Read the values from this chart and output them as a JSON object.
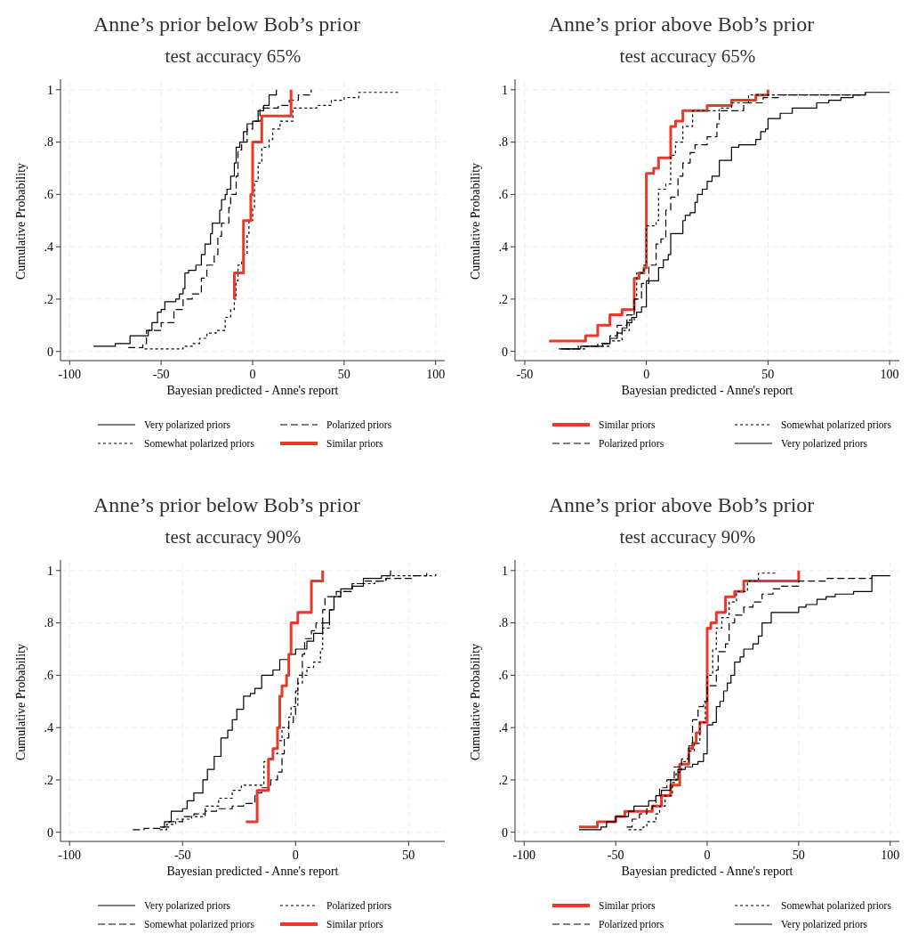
{
  "chart_data": [
    {
      "type": "step",
      "title": "Anne’s prior below Bob’s prior",
      "subtitle": "test accuracy 65%",
      "xlabel": "Bayesian predicted - Anne's report",
      "ylabel": "Cumulative Probability",
      "xlim": [
        -105,
        105
      ],
      "xticks": [
        -100,
        -50,
        0,
        50,
        100
      ],
      "ylim": [
        -0.035,
        1.03
      ],
      "yticks": [
        {
          "value": 0,
          "label": "0"
        },
        {
          "value": 0.2,
          "label": ".2"
        },
        {
          "value": 0.4,
          "label": ".4"
        },
        {
          "value": 0.6,
          "label": ".6"
        },
        {
          "value": 0.8,
          "label": ".8"
        },
        {
          "value": 1,
          "label": "1"
        }
      ],
      "grid": true,
      "legend": "bottom",
      "series": [
        {
          "name": "Very polarized priors",
          "color": "#000000",
          "line_style": "solid",
          "x": [
            -87,
            -75,
            -67,
            -57,
            -55,
            -52,
            -50,
            -48,
            -42,
            -40,
            -38,
            -37,
            -35,
            -31,
            -28,
            -26,
            -23,
            -22,
            -18,
            -17,
            -15,
            -14,
            -12,
            -10,
            -9,
            -7,
            -5,
            -3,
            0,
            3,
            6,
            9,
            13
          ],
          "values": [
            0.02,
            0.03,
            0.06,
            0.08,
            0.11,
            0.15,
            0.16,
            0.19,
            0.2,
            0.22,
            0.24,
            0.3,
            0.31,
            0.33,
            0.37,
            0.41,
            0.45,
            0.49,
            0.54,
            0.58,
            0.6,
            0.62,
            0.67,
            0.72,
            0.78,
            0.8,
            0.84,
            0.87,
            0.88,
            0.92,
            0.94,
            0.98,
            1.0
          ]
        },
        {
          "name": "Polarized priors",
          "color": "#000000",
          "line_style": "dashed",
          "x": [
            -68,
            -60,
            -58,
            -50,
            -43,
            -38,
            -33,
            -28,
            -25,
            -21,
            -19,
            -17,
            -13,
            -12,
            -9,
            -8,
            -6,
            -3,
            0,
            4,
            14,
            20,
            25,
            32
          ],
          "values": [
            0.015,
            0.03,
            0.08,
            0.11,
            0.16,
            0.2,
            0.22,
            0.28,
            0.33,
            0.37,
            0.44,
            0.49,
            0.55,
            0.6,
            0.67,
            0.77,
            0.8,
            0.85,
            0.88,
            0.93,
            0.94,
            0.96,
            0.98,
            1.0
          ]
        },
        {
          "name": "Somewhat polarized priors",
          "color": "#000000",
          "line_style": "dotted",
          "x": [
            -59,
            -40,
            -38,
            -33,
            -29,
            -25,
            -20,
            -15,
            -12,
            -10,
            -9,
            -8,
            -6,
            -5,
            -3,
            -2,
            0,
            1,
            3,
            5,
            9,
            11,
            15,
            22,
            35,
            43,
            50,
            58,
            80
          ],
          "values": [
            0.01,
            0.01,
            0.02,
            0.03,
            0.05,
            0.07,
            0.08,
            0.13,
            0.16,
            0.2,
            0.27,
            0.33,
            0.35,
            0.37,
            0.45,
            0.5,
            0.55,
            0.65,
            0.72,
            0.78,
            0.81,
            0.85,
            0.88,
            0.93,
            0.94,
            0.96,
            0.97,
            0.99,
            0.995
          ]
        },
        {
          "name": "Similar priors",
          "color": "#e8392a",
          "line_style": "solid",
          "x": [
            -10,
            -10,
            -5,
            -1,
            0,
            5,
            21,
            21
          ],
          "values": [
            0.2,
            0.3,
            0.5,
            0.6,
            0.8,
            0.9,
            0.9,
            1.0
          ]
        }
      ]
    },
    {
      "type": "step",
      "title": "Anne’s prior above Bob’s prior",
      "subtitle": "test accuracy 65%",
      "xlabel": "Bayesian predicted - Anne's report",
      "ylabel": "Cumulative Probability",
      "xlim": [
        -54,
        104
      ],
      "xticks": [
        -50,
        0,
        50,
        100
      ],
      "ylim": [
        -0.035,
        1.03
      ],
      "yticks": [
        {
          "value": 0,
          "label": "0"
        },
        {
          "value": 0.2,
          "label": ".2"
        },
        {
          "value": 0.4,
          "label": ".4"
        },
        {
          "value": 0.6,
          "label": ".6"
        },
        {
          "value": 0.8,
          "label": ".8"
        },
        {
          "value": 1,
          "label": "1"
        }
      ],
      "grid": true,
      "legend": "bottom",
      "series": [
        {
          "name": "Similar priors",
          "color": "#e8392a",
          "line_style": "solid",
          "x": [
            -40,
            -25,
            -20,
            -15,
            -10,
            -5,
            -3,
            -1,
            0,
            3,
            5,
            10,
            12,
            15,
            25,
            35,
            45,
            50
          ],
          "values": [
            0.04,
            0.06,
            0.1,
            0.14,
            0.16,
            0.28,
            0.3,
            0.32,
            0.68,
            0.7,
            0.74,
            0.86,
            0.88,
            0.92,
            0.94,
            0.96,
            0.98,
            1.0
          ]
        },
        {
          "name": "Somewhat polarized priors",
          "color": "#000000",
          "line_style": "dotted",
          "x": [
            -35,
            -25,
            -15,
            -10,
            -7,
            -5,
            -4,
            -1,
            0,
            4,
            5,
            8,
            10,
            12,
            15,
            19,
            30,
            35,
            42,
            90
          ],
          "values": [
            0.01,
            0.02,
            0.04,
            0.08,
            0.12,
            0.2,
            0.3,
            0.33,
            0.48,
            0.5,
            0.62,
            0.64,
            0.75,
            0.8,
            0.86,
            0.92,
            0.93,
            0.95,
            0.98,
            0.99
          ]
        },
        {
          "name": "Polarized priors",
          "color": "#000000",
          "line_style": "dashed",
          "x": [
            -34,
            -28,
            -20,
            -15,
            -12,
            -8,
            -5,
            -2,
            1,
            4,
            6,
            8,
            10,
            13,
            15,
            18,
            20,
            25,
            29,
            30,
            40,
            48,
            55,
            90
          ],
          "values": [
            0.01,
            0.02,
            0.03,
            0.06,
            0.1,
            0.14,
            0.2,
            0.26,
            0.33,
            0.41,
            0.43,
            0.54,
            0.59,
            0.67,
            0.72,
            0.76,
            0.79,
            0.82,
            0.87,
            0.92,
            0.95,
            0.97,
            0.98,
            0.99
          ]
        },
        {
          "name": "Very polarized priors",
          "color": "#000000",
          "line_style": "solid",
          "x": [
            -36,
            -27,
            -18,
            -15,
            -12,
            -10,
            -8,
            -6,
            -4,
            -2,
            0,
            5,
            7,
            9,
            10,
            15,
            16,
            18,
            20,
            21,
            23,
            25,
            27,
            30,
            35,
            38,
            45,
            47,
            49,
            50,
            55,
            60,
            70,
            75,
            80,
            85,
            90,
            100
          ],
          "values": [
            0.01,
            0.02,
            0.03,
            0.05,
            0.07,
            0.09,
            0.11,
            0.13,
            0.15,
            0.17,
            0.27,
            0.32,
            0.35,
            0.37,
            0.45,
            0.5,
            0.52,
            0.53,
            0.57,
            0.6,
            0.62,
            0.65,
            0.67,
            0.73,
            0.78,
            0.79,
            0.81,
            0.84,
            0.85,
            0.89,
            0.91,
            0.93,
            0.95,
            0.96,
            0.97,
            0.98,
            0.99,
            0.99
          ]
        }
      ]
    },
    {
      "type": "step",
      "title": "Anne’s prior below Bob’s prior",
      "subtitle": "test accuracy 90%",
      "xlabel": "Bayesian predicted - Anne's report",
      "ylabel": "Cumulative Probability",
      "xlim": [
        -104,
        66
      ],
      "xticks": [
        -100,
        -50,
        0,
        50
      ],
      "ylim": [
        -0.035,
        1.03
      ],
      "yticks": [
        {
          "value": 0,
          "label": "0"
        },
        {
          "value": 0.2,
          "label": ".2"
        },
        {
          "value": 0.4,
          "label": ".4"
        },
        {
          "value": 0.6,
          "label": ".6"
        },
        {
          "value": 0.8,
          "label": ".8"
        },
        {
          "value": 1,
          "label": "1"
        }
      ],
      "grid": true,
      "legend": "bottom",
      "series": [
        {
          "name": "Very polarized priors",
          "color": "#000000",
          "line_style": "solid",
          "x": [
            -60,
            -58,
            -55,
            -50,
            -48,
            -45,
            -41,
            -39,
            -36,
            -33,
            -30,
            -28,
            -26,
            -23,
            -20,
            -18,
            -15,
            -10,
            -7,
            -3,
            0,
            5,
            8,
            12,
            15,
            17,
            20,
            25,
            30,
            38,
            42
          ],
          "values": [
            0.02,
            0.04,
            0.08,
            0.09,
            0.12,
            0.15,
            0.2,
            0.24,
            0.29,
            0.36,
            0.39,
            0.43,
            0.47,
            0.52,
            0.53,
            0.55,
            0.6,
            0.62,
            0.66,
            0.68,
            0.7,
            0.73,
            0.76,
            0.8,
            0.85,
            0.9,
            0.93,
            0.94,
            0.97,
            0.98,
            1.0
          ]
        },
        {
          "name": "Polarized priors",
          "color": "#000000",
          "line_style": "dotted",
          "x": [
            -60,
            -57,
            -53,
            -46,
            -40,
            -34,
            -28,
            -24,
            -14,
            -12,
            -10,
            -8,
            -6,
            -3,
            -2,
            1,
            3,
            5,
            8,
            11,
            12,
            15,
            17,
            20,
            25,
            35,
            40,
            62
          ],
          "values": [
            0.01,
            0.03,
            0.05,
            0.06,
            0.1,
            0.13,
            0.16,
            0.18,
            0.27,
            0.28,
            0.3,
            0.35,
            0.4,
            0.44,
            0.48,
            0.57,
            0.6,
            0.63,
            0.65,
            0.7,
            0.78,
            0.85,
            0.9,
            0.92,
            0.95,
            0.96,
            0.98,
            0.99
          ]
        },
        {
          "name": "Somewhat polarized priors",
          "color": "#000000",
          "line_style": "dashed",
          "x": [
            -72,
            -67,
            -60,
            -56,
            -50,
            -45,
            -40,
            -35,
            -28,
            -23,
            -18,
            -15,
            -12,
            -11,
            -8,
            -6,
            -5,
            -3,
            -1,
            0,
            1,
            3,
            4,
            7,
            9,
            12,
            13,
            18,
            25,
            30,
            40,
            52,
            58
          ],
          "values": [
            0.01,
            0.015,
            0.02,
            0.04,
            0.06,
            0.07,
            0.08,
            0.09,
            0.1,
            0.11,
            0.15,
            0.17,
            0.18,
            0.2,
            0.23,
            0.3,
            0.36,
            0.42,
            0.45,
            0.54,
            0.6,
            0.68,
            0.74,
            0.77,
            0.8,
            0.85,
            0.9,
            0.92,
            0.95,
            0.96,
            0.97,
            0.98,
            0.99
          ]
        },
        {
          "name": "Similar priors",
          "color": "#e8392a",
          "line_style": "solid",
          "x": [
            -22,
            -17,
            -12,
            -10,
            -8,
            -7,
            -6,
            -4,
            -3,
            -2,
            1,
            7,
            12
          ],
          "values": [
            0.04,
            0.16,
            0.28,
            0.32,
            0.4,
            0.52,
            0.56,
            0.6,
            0.68,
            0.8,
            0.84,
            0.96,
            1.0
          ]
        }
      ]
    },
    {
      "type": "step",
      "title": "Anne’s prior above Bob’s prior",
      "subtitle": "test accuracy 90%",
      "xlabel": "Bayesian predicted - Anne's report",
      "ylabel": "Cumulative Probability",
      "xlim": [
        -105,
        105
      ],
      "xticks": [
        -100,
        -50,
        0,
        50,
        100
      ],
      "ylim": [
        -0.035,
        1.03
      ],
      "yticks": [
        {
          "value": 0,
          "label": "0"
        },
        {
          "value": 0.2,
          "label": ".2"
        },
        {
          "value": 0.4,
          "label": ".4"
        },
        {
          "value": 0.6,
          "label": ".6"
        },
        {
          "value": 0.8,
          "label": ".8"
        },
        {
          "value": 1,
          "label": "1"
        }
      ],
      "grid": true,
      "legend": "bottom",
      "series": [
        {
          "name": "Similar priors",
          "color": "#e8392a",
          "line_style": "solid",
          "x": [
            -70,
            -60,
            -50,
            -45,
            -30,
            -25,
            -20,
            -15,
            -10,
            -8,
            -6,
            -4,
            0,
            2,
            5,
            10,
            15,
            20,
            50
          ],
          "values": [
            0.02,
            0.04,
            0.06,
            0.08,
            0.1,
            0.14,
            0.18,
            0.26,
            0.32,
            0.34,
            0.38,
            0.42,
            0.78,
            0.8,
            0.84,
            0.9,
            0.92,
            0.96,
            1.0
          ]
        },
        {
          "name": "Somewhat polarized priors",
          "color": "#000000",
          "line_style": "dotted",
          "x": [
            -43,
            -35,
            -33,
            -28,
            -26,
            -23,
            -19,
            -17,
            -14,
            -10,
            -7,
            -4,
            -1,
            0,
            3,
            5,
            8,
            12,
            16,
            22,
            28,
            37
          ],
          "values": [
            0.01,
            0.02,
            0.04,
            0.07,
            0.1,
            0.14,
            0.19,
            0.23,
            0.27,
            0.31,
            0.34,
            0.42,
            0.5,
            0.6,
            0.7,
            0.78,
            0.82,
            0.88,
            0.92,
            0.96,
            0.99,
            1.0
          ]
        },
        {
          "name": "Polarized priors",
          "color": "#000000",
          "line_style": "dashed",
          "x": [
            -44,
            -41,
            -37,
            -33,
            -30,
            -28,
            -26,
            -22,
            -18,
            -14,
            -10,
            -8,
            -5,
            -2,
            0,
            5,
            6,
            10,
            12,
            15,
            20,
            25,
            30,
            36,
            40,
            50,
            65,
            90
          ],
          "values": [
            0.02,
            0.05,
            0.07,
            0.09,
            0.1,
            0.14,
            0.17,
            0.2,
            0.25,
            0.28,
            0.33,
            0.43,
            0.48,
            0.5,
            0.56,
            0.62,
            0.69,
            0.72,
            0.8,
            0.83,
            0.86,
            0.88,
            0.91,
            0.93,
            0.94,
            0.96,
            0.97,
            0.975
          ]
        },
        {
          "name": "Very polarized priors",
          "color": "#000000",
          "line_style": "solid",
          "x": [
            -70,
            -58,
            -55,
            -50,
            -43,
            -40,
            -32,
            -28,
            -25,
            -20,
            -16,
            -12,
            -8,
            -5,
            -2,
            0,
            3,
            5,
            7,
            9,
            11,
            13,
            15,
            18,
            20,
            25,
            28,
            30,
            35,
            50,
            54,
            60,
            65,
            70,
            80,
            90,
            100
          ],
          "values": [
            0.01,
            0.02,
            0.04,
            0.06,
            0.08,
            0.1,
            0.12,
            0.14,
            0.16,
            0.2,
            0.24,
            0.25,
            0.26,
            0.27,
            0.3,
            0.41,
            0.42,
            0.48,
            0.5,
            0.54,
            0.57,
            0.6,
            0.65,
            0.67,
            0.7,
            0.72,
            0.75,
            0.8,
            0.84,
            0.86,
            0.87,
            0.89,
            0.9,
            0.91,
            0.92,
            0.98,
            0.98
          ]
        }
      ]
    }
  ]
}
